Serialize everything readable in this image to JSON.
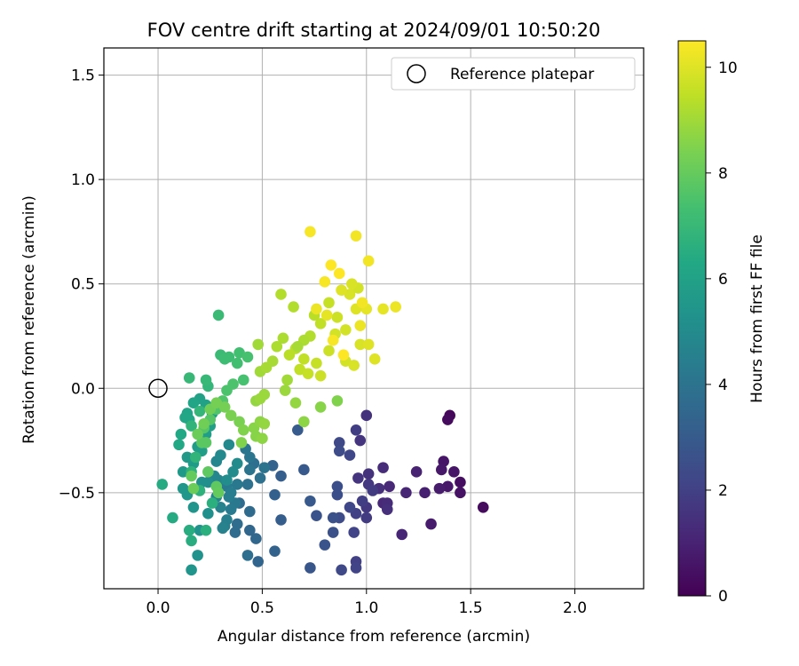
{
  "chart_data": {
    "type": "scatter",
    "title": "FOV centre drift starting at 2024/09/01 10:50:20",
    "xlabel": "Angular distance from reference (arcmin)",
    "ylabel": "Rotation from reference (arcmin)",
    "xlim": [
      -0.26,
      2.33
    ],
    "ylim": [
      -0.96,
      1.63
    ],
    "xticks": [
      0.0,
      0.5,
      1.0,
      1.5,
      2.0
    ],
    "xtick_labels": [
      "0.0",
      "0.5",
      "1.0",
      "1.5",
      "2.0"
    ],
    "yticks": [
      -0.5,
      0.0,
      0.5,
      1.0,
      1.5
    ],
    "ytick_labels": [
      "−0.5",
      "0.0",
      "0.5",
      "1.0",
      "1.5"
    ],
    "grid": true,
    "legend": {
      "position": "top-right",
      "entries": [
        {
          "label": "Reference platepar",
          "marker": "open-circle",
          "color": "#000000"
        }
      ]
    },
    "reference_point": {
      "x": 0.0,
      "y": 0.0
    },
    "colorbar": {
      "label": "Hours from first FF file",
      "colormap": "viridis",
      "range": [
        0,
        10.5
      ],
      "ticks": [
        0,
        2,
        4,
        6,
        8,
        10
      ],
      "tick_labels": [
        "0",
        "2",
        "4",
        "6",
        "8",
        "10"
      ],
      "colors": [
        "#440154",
        "#482475",
        "#414487",
        "#355f8d",
        "#2a788e",
        "#21918c",
        "#22a884",
        "#44bf70",
        "#7ad151",
        "#bddf26",
        "#fde725"
      ]
    },
    "points": [
      {
        "x": 1.4,
        "y": -0.13,
        "h": 0.2
      },
      {
        "x": 1.39,
        "y": -0.15,
        "h": 0.3
      },
      {
        "x": 1.56,
        "y": -0.57,
        "h": 0.3
      },
      {
        "x": 1.45,
        "y": -0.45,
        "h": 0.4
      },
      {
        "x": 1.45,
        "y": -0.5,
        "h": 0.5
      },
      {
        "x": 1.42,
        "y": -0.4,
        "h": 0.6
      },
      {
        "x": 1.37,
        "y": -0.35,
        "h": 0.6
      },
      {
        "x": 1.36,
        "y": -0.39,
        "h": 0.7
      },
      {
        "x": 1.39,
        "y": -0.47,
        "h": 0.7
      },
      {
        "x": 1.35,
        "y": -0.48,
        "h": 0.8
      },
      {
        "x": 1.31,
        "y": -0.65,
        "h": 0.8
      },
      {
        "x": 1.28,
        "y": -0.5,
        "h": 0.9
      },
      {
        "x": 1.24,
        "y": -0.4,
        "h": 1.0
      },
      {
        "x": 1.19,
        "y": -0.5,
        "h": 1.1
      },
      {
        "x": 1.17,
        "y": -0.7,
        "h": 1.1
      },
      {
        "x": 1.08,
        "y": -0.55,
        "h": 1.2
      },
      {
        "x": 1.11,
        "y": -0.47,
        "h": 1.2
      },
      {
        "x": 1.1,
        "y": -0.55,
        "h": 1.3
      },
      {
        "x": 1.08,
        "y": -0.38,
        "h": 1.3
      },
      {
        "x": 1.1,
        "y": -0.58,
        "h": 1.4
      },
      {
        "x": 1.06,
        "y": -0.48,
        "h": 1.4
      },
      {
        "x": 1.01,
        "y": -0.41,
        "h": 1.5
      },
      {
        "x": 1.0,
        "y": -0.13,
        "h": 1.5
      },
      {
        "x": 0.97,
        "y": -0.25,
        "h": 1.6
      },
      {
        "x": 0.96,
        "y": -0.43,
        "h": 1.6
      },
      {
        "x": 1.01,
        "y": -0.46,
        "h": 1.7
      },
      {
        "x": 1.0,
        "y": -0.57,
        "h": 1.7
      },
      {
        "x": 1.0,
        "y": -0.62,
        "h": 1.8
      },
      {
        "x": 1.03,
        "y": -0.49,
        "h": 1.8
      },
      {
        "x": 0.98,
        "y": -0.54,
        "h": 1.9
      },
      {
        "x": 0.95,
        "y": -0.2,
        "h": 1.9
      },
      {
        "x": 0.95,
        "y": -0.6,
        "h": 2.0
      },
      {
        "x": 0.95,
        "y": -0.83,
        "h": 2.0
      },
      {
        "x": 0.95,
        "y": -0.86,
        "h": 2.1
      },
      {
        "x": 0.94,
        "y": -0.69,
        "h": 2.1
      },
      {
        "x": 0.92,
        "y": -0.32,
        "h": 2.2
      },
      {
        "x": 0.92,
        "y": -0.57,
        "h": 2.2
      },
      {
        "x": 0.88,
        "y": -0.87,
        "h": 2.3
      },
      {
        "x": 0.87,
        "y": -0.26,
        "h": 2.3
      },
      {
        "x": 0.87,
        "y": -0.3,
        "h": 2.4
      },
      {
        "x": 0.87,
        "y": -0.62,
        "h": 2.4
      },
      {
        "x": 0.86,
        "y": -0.47,
        "h": 2.5
      },
      {
        "x": 0.86,
        "y": -0.51,
        "h": 2.5
      },
      {
        "x": 0.84,
        "y": -0.62,
        "h": 2.6
      },
      {
        "x": 0.84,
        "y": -0.69,
        "h": 2.6
      },
      {
        "x": 0.8,
        "y": -0.75,
        "h": 2.7
      },
      {
        "x": 0.76,
        "y": -0.61,
        "h": 2.7
      },
      {
        "x": 0.73,
        "y": -0.86,
        "h": 2.8
      },
      {
        "x": 0.73,
        "y": -0.54,
        "h": 2.9
      },
      {
        "x": 0.7,
        "y": -0.39,
        "h": 2.9
      },
      {
        "x": 0.67,
        "y": -0.2,
        "h": 3.0
      },
      {
        "x": 0.59,
        "y": -0.42,
        "h": 3.1
      },
      {
        "x": 0.59,
        "y": -0.63,
        "h": 3.1
      },
      {
        "x": 0.56,
        "y": -0.51,
        "h": 3.2
      },
      {
        "x": 0.55,
        "y": -0.37,
        "h": 3.3
      },
      {
        "x": 0.56,
        "y": -0.78,
        "h": 3.3
      },
      {
        "x": 0.48,
        "y": -0.83,
        "h": 3.4
      },
      {
        "x": 0.47,
        "y": -0.72,
        "h": 3.5
      },
      {
        "x": 0.44,
        "y": -0.68,
        "h": 3.5
      },
      {
        "x": 0.39,
        "y": -0.55,
        "h": 3.6
      },
      {
        "x": 0.44,
        "y": -0.59,
        "h": 3.6
      },
      {
        "x": 0.37,
        "y": -0.69,
        "h": 3.7
      },
      {
        "x": 0.38,
        "y": -0.65,
        "h": 3.7
      },
      {
        "x": 0.43,
        "y": -0.8,
        "h": 3.8
      },
      {
        "x": 0.46,
        "y": -0.36,
        "h": 3.8
      },
      {
        "x": 0.43,
        "y": -0.46,
        "h": 3.9
      },
      {
        "x": 0.49,
        "y": -0.43,
        "h": 3.9
      },
      {
        "x": 0.51,
        "y": -0.38,
        "h": 4.0
      },
      {
        "x": 0.44,
        "y": -0.39,
        "h": 4.0
      },
      {
        "x": 0.42,
        "y": -0.29,
        "h": 4.1
      },
      {
        "x": 0.44,
        "y": -0.33,
        "h": 4.1
      },
      {
        "x": 0.38,
        "y": -0.46,
        "h": 4.2
      },
      {
        "x": 0.37,
        "y": -0.55,
        "h": 4.2
      },
      {
        "x": 0.35,
        "y": -0.58,
        "h": 4.3
      },
      {
        "x": 0.33,
        "y": -0.47,
        "h": 4.3
      },
      {
        "x": 0.34,
        "y": -0.52,
        "h": 4.4
      },
      {
        "x": 0.35,
        "y": -0.5,
        "h": 4.4
      },
      {
        "x": 0.33,
        "y": -0.63,
        "h": 4.5
      },
      {
        "x": 0.32,
        "y": -0.66,
        "h": 4.5
      },
      {
        "x": 0.31,
        "y": -0.67,
        "h": 4.6
      },
      {
        "x": 0.3,
        "y": -0.57,
        "h": 4.6
      },
      {
        "x": 0.28,
        "y": -0.52,
        "h": 4.7
      },
      {
        "x": 0.29,
        "y": -0.44,
        "h": 4.7
      },
      {
        "x": 0.27,
        "y": -0.42,
        "h": 4.8
      },
      {
        "x": 0.28,
        "y": -0.35,
        "h": 4.8
      },
      {
        "x": 0.3,
        "y": -0.32,
        "h": 4.9
      },
      {
        "x": 0.34,
        "y": -0.27,
        "h": 4.9
      },
      {
        "x": 0.38,
        "y": -0.36,
        "h": 5.0
      },
      {
        "x": 0.36,
        "y": -0.4,
        "h": 5.0
      },
      {
        "x": 0.33,
        "y": -0.44,
        "h": 5.1
      },
      {
        "x": 0.24,
        "y": -0.45,
        "h": 5.1
      },
      {
        "x": 0.21,
        "y": -0.45,
        "h": 5.2
      },
      {
        "x": 0.24,
        "y": -0.6,
        "h": 5.2
      },
      {
        "x": 0.2,
        "y": -0.68,
        "h": 5.3
      },
      {
        "x": 0.19,
        "y": -0.8,
        "h": 5.3
      },
      {
        "x": 0.16,
        "y": -0.87,
        "h": 5.4
      },
      {
        "x": 0.17,
        "y": -0.57,
        "h": 5.4
      },
      {
        "x": 0.14,
        "y": -0.51,
        "h": 5.5
      },
      {
        "x": 0.12,
        "y": -0.48,
        "h": 5.5
      },
      {
        "x": 0.12,
        "y": -0.4,
        "h": 5.6
      },
      {
        "x": 0.14,
        "y": -0.33,
        "h": 5.6
      },
      {
        "x": 0.17,
        "y": -0.36,
        "h": 5.7
      },
      {
        "x": 0.19,
        "y": -0.28,
        "h": 5.7
      },
      {
        "x": 0.21,
        "y": -0.3,
        "h": 5.8
      },
      {
        "x": 0.23,
        "y": -0.22,
        "h": 5.8
      },
      {
        "x": 0.25,
        "y": -0.18,
        "h": 5.9
      },
      {
        "x": 0.26,
        "y": -0.12,
        "h": 5.9
      },
      {
        "x": 0.23,
        "y": -0.08,
        "h": 6.0
      },
      {
        "x": 0.2,
        "y": -0.05,
        "h": 6.0
      },
      {
        "x": 0.17,
        "y": -0.07,
        "h": 6.1
      },
      {
        "x": 0.14,
        "y": -0.12,
        "h": 6.1
      },
      {
        "x": 0.15,
        "y": -0.15,
        "h": 6.2
      },
      {
        "x": 0.13,
        "y": -0.14,
        "h": 6.2
      },
      {
        "x": 0.11,
        "y": -0.22,
        "h": 6.3
      },
      {
        "x": 0.1,
        "y": -0.27,
        "h": 6.3
      },
      {
        "x": 0.02,
        "y": -0.46,
        "h": 6.4
      },
      {
        "x": 0.07,
        "y": -0.62,
        "h": 6.4
      },
      {
        "x": 0.16,
        "y": -0.73,
        "h": 6.5
      },
      {
        "x": 0.15,
        "y": -0.68,
        "h": 6.5
      },
      {
        "x": 0.23,
        "y": -0.68,
        "h": 6.6
      },
      {
        "x": 0.26,
        "y": -0.55,
        "h": 6.6
      },
      {
        "x": 0.2,
        "y": -0.49,
        "h": 6.7
      },
      {
        "x": 0.16,
        "y": -0.4,
        "h": 6.7
      },
      {
        "x": 0.18,
        "y": -0.33,
        "h": 6.8
      },
      {
        "x": 0.16,
        "y": -0.18,
        "h": 6.8
      },
      {
        "x": 0.2,
        "y": -0.11,
        "h": 6.9
      },
      {
        "x": 0.24,
        "y": 0.01,
        "h": 6.9
      },
      {
        "x": 0.23,
        "y": 0.04,
        "h": 7.0
      },
      {
        "x": 0.15,
        "y": 0.05,
        "h": 7.0
      },
      {
        "x": 0.29,
        "y": 0.35,
        "h": 7.1
      },
      {
        "x": 0.3,
        "y": 0.16,
        "h": 7.1
      },
      {
        "x": 0.32,
        "y": 0.14,
        "h": 7.2
      },
      {
        "x": 0.34,
        "y": 0.15,
        "h": 7.2
      },
      {
        "x": 0.39,
        "y": 0.17,
        "h": 7.3
      },
      {
        "x": 0.38,
        "y": 0.12,
        "h": 7.3
      },
      {
        "x": 0.43,
        "y": 0.15,
        "h": 7.4
      },
      {
        "x": 0.41,
        "y": 0.04,
        "h": 7.4
      },
      {
        "x": 0.36,
        "y": 0.02,
        "h": 7.5
      },
      {
        "x": 0.33,
        "y": -0.01,
        "h": 7.5
      },
      {
        "x": 0.31,
        "y": -0.06,
        "h": 7.6
      },
      {
        "x": 0.28,
        "y": -0.1,
        "h": 7.6
      },
      {
        "x": 0.25,
        "y": -0.15,
        "h": 7.7
      },
      {
        "x": 0.22,
        "y": -0.19,
        "h": 7.7
      },
      {
        "x": 0.21,
        "y": -0.26,
        "h": 7.8
      },
      {
        "x": 0.23,
        "y": -0.26,
        "h": 7.8
      },
      {
        "x": 0.24,
        "y": -0.4,
        "h": 7.9
      },
      {
        "x": 0.28,
        "y": -0.47,
        "h": 7.9
      },
      {
        "x": 0.29,
        "y": -0.5,
        "h": 8.0
      },
      {
        "x": 0.16,
        "y": -0.42,
        "h": 8.0
      },
      {
        "x": 0.17,
        "y": -0.48,
        "h": 8.1
      },
      {
        "x": 0.19,
        "y": -0.22,
        "h": 8.1
      },
      {
        "x": 0.22,
        "y": -0.17,
        "h": 8.2
      },
      {
        "x": 0.25,
        "y": -0.1,
        "h": 8.2
      },
      {
        "x": 0.28,
        "y": -0.07,
        "h": 8.3
      },
      {
        "x": 0.32,
        "y": -0.09,
        "h": 8.3
      },
      {
        "x": 0.35,
        "y": -0.13,
        "h": 8.4
      },
      {
        "x": 0.39,
        "y": -0.16,
        "h": 8.4
      },
      {
        "x": 0.41,
        "y": -0.2,
        "h": 8.5
      },
      {
        "x": 0.4,
        "y": -0.26,
        "h": 8.5
      },
      {
        "x": 0.46,
        "y": -0.19,
        "h": 8.6
      },
      {
        "x": 0.47,
        "y": -0.23,
        "h": 8.6
      },
      {
        "x": 0.5,
        "y": -0.24,
        "h": 8.7
      },
      {
        "x": 0.49,
        "y": -0.16,
        "h": 8.7
      },
      {
        "x": 0.51,
        "y": -0.17,
        "h": 8.8
      },
      {
        "x": 0.47,
        "y": -0.06,
        "h": 8.8
      },
      {
        "x": 0.49,
        "y": -0.05,
        "h": 8.9
      },
      {
        "x": 0.51,
        "y": -0.03,
        "h": 8.9
      },
      {
        "x": 0.49,
        "y": 0.08,
        "h": 9.0
      },
      {
        "x": 0.48,
        "y": 0.21,
        "h": 9.0
      },
      {
        "x": 0.52,
        "y": 0.1,
        "h": 9.1
      },
      {
        "x": 0.55,
        "y": 0.13,
        "h": 9.1
      },
      {
        "x": 0.57,
        "y": 0.2,
        "h": 9.2
      },
      {
        "x": 0.6,
        "y": 0.24,
        "h": 9.2
      },
      {
        "x": 0.59,
        "y": 0.45,
        "h": 9.3
      },
      {
        "x": 0.65,
        "y": 0.39,
        "h": 9.3
      },
      {
        "x": 0.63,
        "y": 0.16,
        "h": 9.4
      },
      {
        "x": 0.66,
        "y": 0.19,
        "h": 9.4
      },
      {
        "x": 0.68,
        "y": 0.09,
        "h": 9.5
      },
      {
        "x": 0.7,
        "y": 0.14,
        "h": 9.5
      },
      {
        "x": 0.72,
        "y": 0.07,
        "h": 9.6
      },
      {
        "x": 0.76,
        "y": 0.12,
        "h": 9.6
      },
      {
        "x": 0.78,
        "y": 0.06,
        "h": 9.7
      },
      {
        "x": 0.82,
        "y": 0.18,
        "h": 9.7
      },
      {
        "x": 0.85,
        "y": 0.26,
        "h": 9.8
      },
      {
        "x": 0.9,
        "y": 0.13,
        "h": 9.8
      },
      {
        "x": 0.94,
        "y": 0.11,
        "h": 9.9
      },
      {
        "x": 0.97,
        "y": 0.21,
        "h": 9.9
      },
      {
        "x": 1.01,
        "y": 0.21,
        "h": 10.0
      },
      {
        "x": 1.04,
        "y": 0.14,
        "h": 10.0
      },
      {
        "x": 1.0,
        "y": 0.38,
        "h": 10.1
      },
      {
        "x": 1.08,
        "y": 0.38,
        "h": 10.1
      },
      {
        "x": 1.14,
        "y": 0.39,
        "h": 10.2
      },
      {
        "x": 0.97,
        "y": 0.3,
        "h": 10.2
      },
      {
        "x": 0.95,
        "y": 0.73,
        "h": 10.3
      },
      {
        "x": 1.01,
        "y": 0.61,
        "h": 10.3
      },
      {
        "x": 0.73,
        "y": 0.75,
        "h": 10.4
      },
      {
        "x": 0.8,
        "y": 0.51,
        "h": 10.4
      },
      {
        "x": 0.83,
        "y": 0.59,
        "h": 10.5
      },
      {
        "x": 0.87,
        "y": 0.55,
        "h": 10.5
      },
      {
        "x": 0.92,
        "y": 0.45,
        "h": 9.9
      },
      {
        "x": 0.95,
        "y": 0.38,
        "h": 10.0
      },
      {
        "x": 0.9,
        "y": 0.28,
        "h": 9.8
      },
      {
        "x": 0.86,
        "y": 0.34,
        "h": 9.7
      },
      {
        "x": 0.82,
        "y": 0.41,
        "h": 9.6
      },
      {
        "x": 0.78,
        "y": 0.31,
        "h": 9.5
      },
      {
        "x": 0.75,
        "y": 0.35,
        "h": 9.4
      },
      {
        "x": 0.73,
        "y": 0.25,
        "h": 9.3
      },
      {
        "x": 0.7,
        "y": 0.23,
        "h": 9.2
      },
      {
        "x": 0.67,
        "y": 0.2,
        "h": 9.1
      },
      {
        "x": 0.62,
        "y": 0.04,
        "h": 9.0
      },
      {
        "x": 0.61,
        "y": -0.01,
        "h": 8.9
      },
      {
        "x": 0.66,
        "y": -0.07,
        "h": 8.8
      },
      {
        "x": 0.7,
        "y": -0.16,
        "h": 8.7
      },
      {
        "x": 0.78,
        "y": -0.09,
        "h": 8.6
      },
      {
        "x": 0.86,
        "y": -0.06,
        "h": 8.5
      },
      {
        "x": 0.96,
        "y": 0.48,
        "h": 9.8
      },
      {
        "x": 0.93,
        "y": 0.5,
        "h": 9.9
      },
      {
        "x": 0.88,
        "y": 0.47,
        "h": 10.0
      },
      {
        "x": 0.81,
        "y": 0.35,
        "h": 10.1
      },
      {
        "x": 0.76,
        "y": 0.38,
        "h": 10.2
      },
      {
        "x": 0.98,
        "y": 0.41,
        "h": 10.3
      },
      {
        "x": 0.84,
        "y": 0.23,
        "h": 10.4
      },
      {
        "x": 0.89,
        "y": 0.16,
        "h": 10.5
      }
    ]
  }
}
